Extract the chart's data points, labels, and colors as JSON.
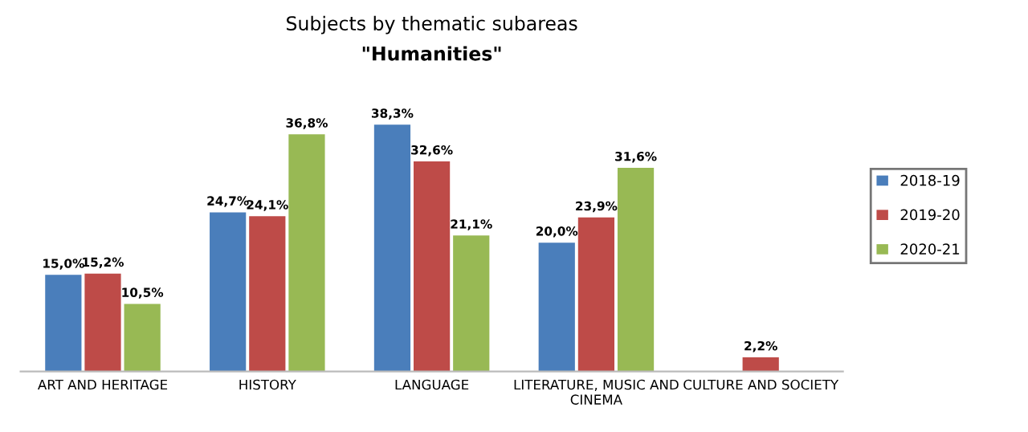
{
  "chart_data": {
    "type": "bar",
    "title": "Subjects by thematic subareas",
    "subtitle": "\"Humanities\"",
    "categories": [
      "ART AND HERITAGE",
      "HISTORY",
      "LANGUAGE",
      "LITERATURE, MUSIC AND\nCINEMA",
      "CULTURE AND SOCIETY"
    ],
    "series": [
      {
        "name": "2018-19",
        "color": "#4a7ebb",
        "values": [
          15.0,
          24.7,
          38.3,
          20.0,
          null
        ],
        "value_labels": [
          "15,0%",
          "24,7%",
          "38,3%",
          "20,0%",
          null
        ]
      },
      {
        "name": "2019-20",
        "color": "#be4b48",
        "values": [
          15.2,
          24.1,
          32.6,
          23.9,
          2.2
        ],
        "value_labels": [
          "15,2%",
          "24,1%",
          "32,6%",
          "23,9%",
          "2,2%"
        ]
      },
      {
        "name": "2020-21",
        "color": "#98b954",
        "values": [
          10.5,
          36.8,
          21.1,
          31.6,
          null
        ],
        "value_labels": [
          "10,5%",
          "36,8%",
          "21,1%",
          "31,6%",
          null
        ]
      }
    ],
    "legend": "right",
    "grid": false,
    "tick_labels": "x"
  }
}
